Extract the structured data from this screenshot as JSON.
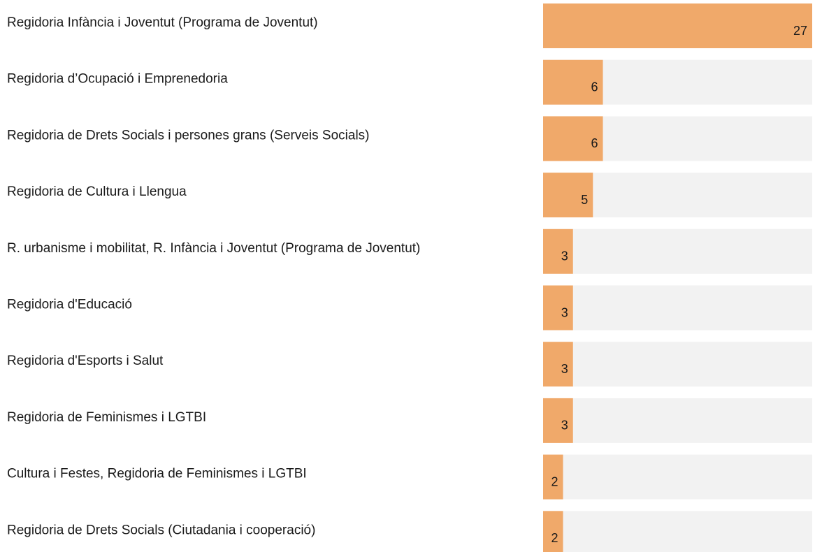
{
  "chart_data": {
    "type": "bar",
    "orientation": "horizontal",
    "categories": [
      "Regidoria Infància i Joventut (Programa de Joventut)",
      "Regidoria d’Ocupació i Emprenedoria",
      "Regidoria de Drets Socials i persones grans (Serveis Socials)",
      "Regidoria de Cultura i Llengua",
      "R. urbanisme i mobilitat, R. Infància i Joventut (Programa de Joventut)",
      "Regidoria d'Educació",
      "Regidoria d'Esports i Salut",
      "Regidoria de Feminismes i LGTBI",
      "Cultura i Festes, Regidoria de Feminismes i LGTBI",
      "Regidoria de Drets Socials (Ciutadania i cooperació)"
    ],
    "values": [
      27,
      6,
      6,
      5,
      3,
      3,
      3,
      3,
      2,
      2
    ],
    "color": "#f0a96a",
    "track_color": "#f2f2f2",
    "xlim": [
      0,
      27
    ]
  }
}
